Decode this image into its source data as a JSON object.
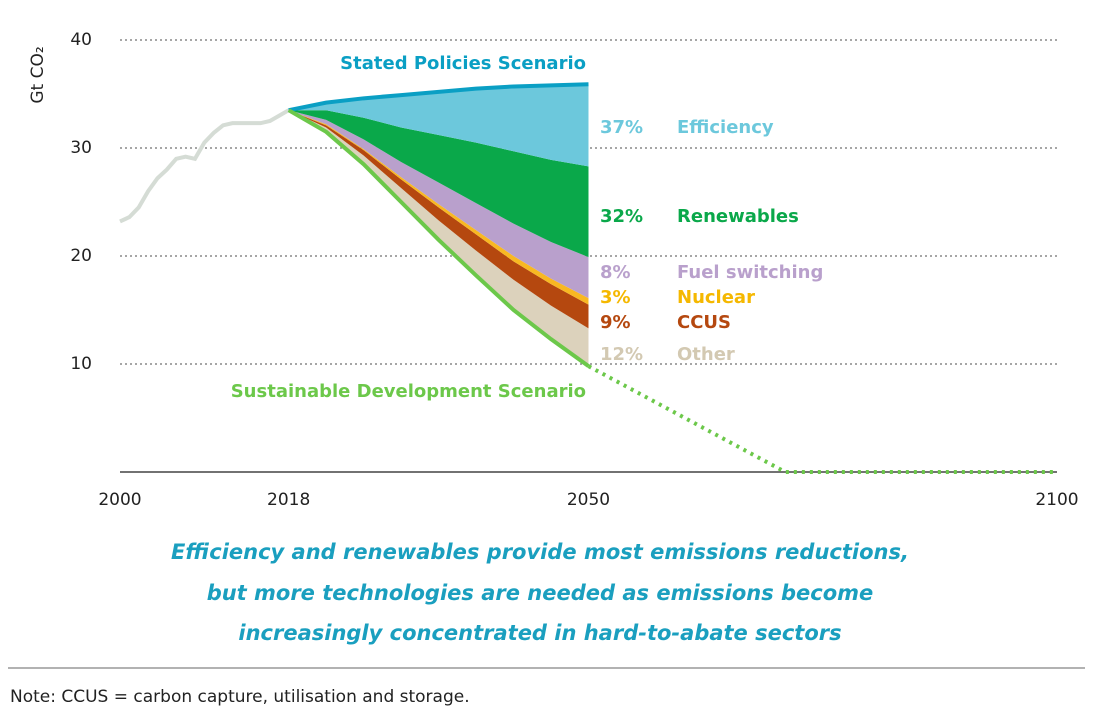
{
  "chart_data": {
    "type": "area",
    "y_label": "Gt CO₂",
    "xlim": [
      2000,
      2100
    ],
    "ylim": [
      0,
      40
    ],
    "xticks": [
      2000,
      2018,
      2050,
      2100
    ],
    "yticks": [
      10,
      20,
      30,
      40
    ],
    "grid": true,
    "historical": {
      "color": "#d5dcd5",
      "x": [
        2000,
        2001,
        2002,
        2003,
        2004,
        2005,
        2006,
        2007,
        2008,
        2009,
        2010,
        2011,
        2012,
        2013,
        2014,
        2015,
        2016,
        2017,
        2018
      ],
      "values": [
        23.2,
        23.6,
        24.5,
        26.0,
        27.2,
        28.0,
        29.0,
        29.2,
        29.0,
        30.5,
        31.4,
        32.1,
        32.3,
        32.3,
        32.3,
        32.3,
        32.5,
        33.0,
        33.5
      ]
    },
    "stated": {
      "name": "Stated Policies Scenario",
      "color": "#0a9fc4",
      "x": [
        2018,
        2022,
        2026,
        2030,
        2034,
        2038,
        2042,
        2046,
        2050
      ],
      "values": [
        33.5,
        34.2,
        34.6,
        34.9,
        35.2,
        35.5,
        35.7,
        35.8,
        35.9
      ]
    },
    "sds": {
      "name": "Sustainable Development Scenario",
      "color": "#6cc84a",
      "x": [
        2018,
        2022,
        2026,
        2030,
        2034,
        2038,
        2042,
        2046,
        2050
      ],
      "values": [
        33.5,
        31.5,
        28.5,
        25.0,
        21.5,
        18.2,
        15.0,
        12.3,
        9.8
      ]
    },
    "sds_outlook": {
      "color": "#6cc84a",
      "x": [
        2050,
        2071,
        2100
      ],
      "values": [
        9.8,
        0,
        0
      ]
    },
    "wedges": {
      "x": [
        2018,
        2022,
        2026,
        2030,
        2034,
        2038,
        2042,
        2046,
        2050
      ],
      "series": [
        {
          "name": "Other",
          "share_label": "12%",
          "color": "#dcd2bc",
          "label_color": "#d3c9b2",
          "values": [
            0,
            0.4,
            0.8,
            1.3,
            1.8,
            2.3,
            2.8,
            3.1,
            3.5
          ]
        },
        {
          "name": "CCUS",
          "share_label": "9%",
          "color": "#b5480f",
          "label_color": "#b5480f",
          "values": [
            0,
            0.2,
            0.5,
            0.8,
            1.2,
            1.5,
            1.7,
            2.0,
            2.2
          ]
        },
        {
          "name": "Nuclear",
          "share_label": "3%",
          "color": "#f8b822",
          "label_color": "#f5b800",
          "values": [
            0,
            0.1,
            0.1,
            0.2,
            0.3,
            0.4,
            0.5,
            0.5,
            0.6
          ]
        },
        {
          "name": "Fuel switching",
          "share_label": "8%",
          "color": "#b9a0cc",
          "label_color": "#b9a0cc",
          "values": [
            0,
            0.4,
            0.9,
            1.4,
            2.0,
            2.5,
            3.0,
            3.4,
            3.8
          ]
        },
        {
          "name": "Renewables",
          "share_label": "32%",
          "color": "#0aa84a",
          "label_color": "#0aa84a",
          "values": [
            0,
            0.9,
            2.0,
            3.2,
            4.4,
            5.6,
            6.7,
            7.6,
            8.4
          ]
        },
        {
          "name": "Efficiency",
          "share_label": "37%",
          "color": "#6cc8dc",
          "label_color": "#6cc8dc",
          "values": [
            0,
            0.7,
            1.8,
            3.0,
            4.0,
            5.0,
            6.0,
            6.9,
            7.6
          ]
        }
      ]
    }
  },
  "caption": [
    "Efficiency and renewables provide most emissions reductions,",
    "but more technologies are needed as emissions become",
    "increasingly concentrated in hard-to-abate sectors"
  ],
  "note": "Note: CCUS = carbon capture, utilisation and storage."
}
